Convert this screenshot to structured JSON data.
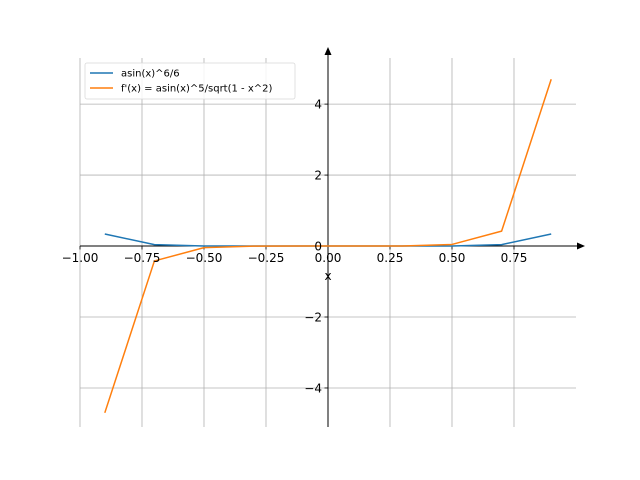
{
  "chart_data": {
    "type": "line",
    "xlabel": "x",
    "xlim": [
      -1.0,
      1.0
    ],
    "ylim": [
      -5.1,
      5.3
    ],
    "grid": true,
    "legend_position": "top-left",
    "x_ticks": [
      -1.0,
      -0.75,
      -0.5,
      -0.25,
      0.0,
      0.25,
      0.5,
      0.75
    ],
    "x_tick_labels": [
      "−1.00",
      "−0.75",
      "−0.50",
      "−0.25",
      "0.00",
      "0.25",
      "0.50",
      "0.75"
    ],
    "y_ticks": [
      -4,
      -2,
      0,
      2,
      4
    ],
    "y_tick_labels": [
      "−4",
      "−2",
      "0",
      "2",
      "4"
    ],
    "series": [
      {
        "name": "asin(x)^6/6",
        "color": "#1f77b4",
        "x": [
          -0.9,
          -0.7,
          -0.5,
          -0.3,
          -0.1,
          0.1,
          0.3,
          0.5,
          0.7,
          0.9
        ],
        "y": [
          0.34,
          0.04,
          0.003,
          0.0001,
          0.0,
          0.0,
          0.0001,
          0.003,
          0.04,
          0.34
        ]
      },
      {
        "name": "f'(x) = asin(x)^5/sqrt(1 - x^2)",
        "color": "#ff7f0e",
        "x": [
          -0.9,
          -0.7,
          -0.5,
          -0.3,
          -0.1,
          0.1,
          0.3,
          0.5,
          0.7,
          0.9
        ],
        "y": [
          -4.7,
          -0.42,
          -0.045,
          -0.0028,
          0.0,
          0.0,
          0.0028,
          0.045,
          0.42,
          4.7
        ]
      }
    ]
  }
}
